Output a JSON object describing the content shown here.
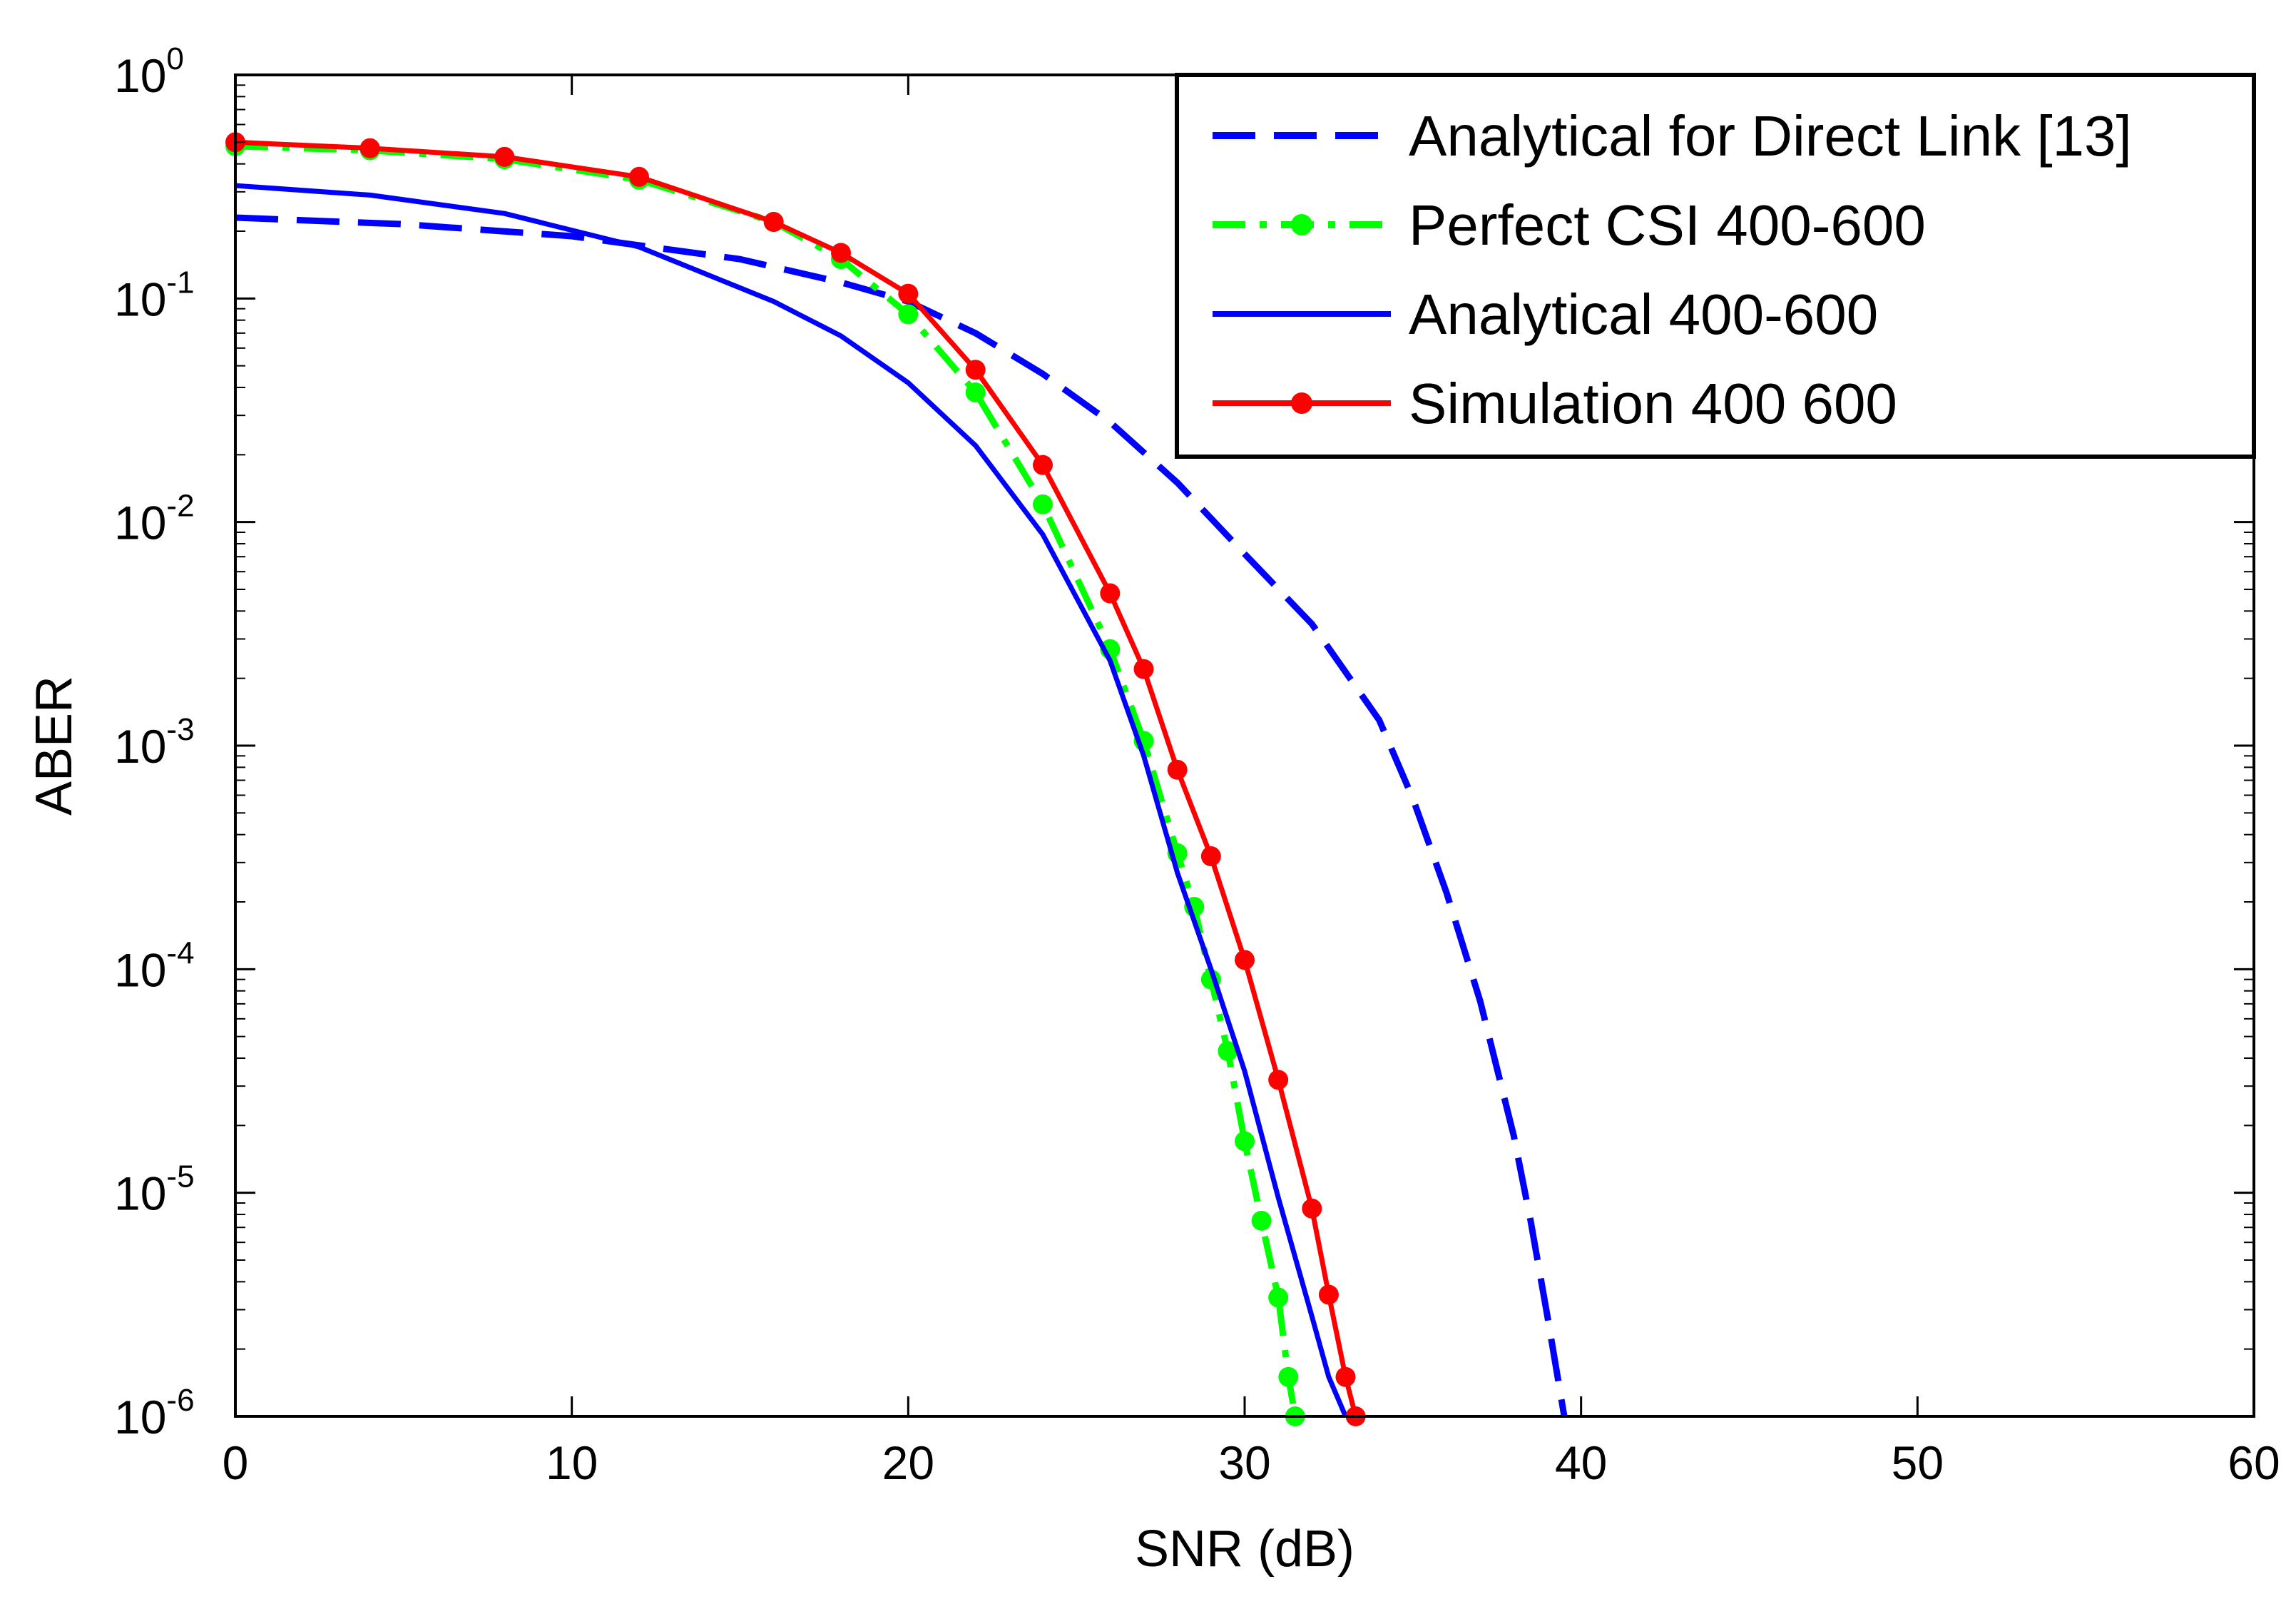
{
  "chart_data": {
    "type": "line",
    "title": "",
    "xlabel": "SNR (dB)",
    "ylabel": "ABER",
    "xlim": [
      0,
      60
    ],
    "ylim": [
      1e-06,
      1
    ],
    "yscale": "log",
    "grid": false,
    "legend_position": "top-right",
    "x_ticks": [
      0,
      10,
      20,
      30,
      40,
      50,
      60
    ],
    "y_ticks": [
      {
        "value": 1,
        "base": "10",
        "exponent": "0"
      },
      {
        "value": 0.1,
        "base": "10",
        "exponent": "-1"
      },
      {
        "value": 0.01,
        "base": "10",
        "exponent": "-2"
      },
      {
        "value": 0.001,
        "base": "10",
        "exponent": "-3"
      },
      {
        "value": 0.0001,
        "base": "10",
        "exponent": "-4"
      },
      {
        "value": 1e-05,
        "base": "10",
        "exponent": "-5"
      },
      {
        "value": 1e-06,
        "base": "10",
        "exponent": "-6"
      }
    ],
    "series": [
      {
        "name": "Analytical for Direct Link [13]",
        "color": "#0000ff",
        "style": "dashed",
        "marker": "none",
        "points": [
          [
            0,
            0.23
          ],
          [
            5,
            0.215
          ],
          [
            10,
            0.19
          ],
          [
            15,
            0.15
          ],
          [
            18,
            0.118
          ],
          [
            20,
            0.097
          ],
          [
            22,
            0.07
          ],
          [
            24,
            0.046
          ],
          [
            26,
            0.028
          ],
          [
            28,
            0.015
          ],
          [
            30,
            0.0072
          ],
          [
            32,
            0.0035
          ],
          [
            34,
            0.0013
          ],
          [
            35,
            0.00058
          ],
          [
            36,
            0.00022
          ],
          [
            37,
            7.2e-05
          ],
          [
            38,
            1.8e-05
          ],
          [
            38.5,
            7.5e-06
          ],
          [
            39,
            2.8e-06
          ],
          [
            39.5,
            1e-06
          ]
        ]
      },
      {
        "name": "Perfect CSI 400-600",
        "color": "#00ff00",
        "style": "dashdot",
        "marker": "dot",
        "points": [
          [
            0,
            0.48
          ],
          [
            4,
            0.46
          ],
          [
            8,
            0.42
          ],
          [
            12,
            0.34
          ],
          [
            16,
            0.22
          ],
          [
            18,
            0.15
          ],
          [
            20,
            0.085
          ],
          [
            22,
            0.038
          ],
          [
            24,
            0.012
          ],
          [
            26,
            0.0027
          ],
          [
            27,
            0.00105
          ],
          [
            28,
            0.00033
          ],
          [
            28.5,
            0.00019
          ],
          [
            29,
            9e-05
          ],
          [
            29.5,
            4.3e-05
          ],
          [
            30,
            1.7e-05
          ],
          [
            30.5,
            7.5e-06
          ],
          [
            31,
            3.4e-06
          ],
          [
            31.3,
            1.5e-06
          ],
          [
            31.5,
            1e-06
          ]
        ]
      },
      {
        "name": "Analytical 400-600",
        "color": "#0000ff",
        "style": "solid",
        "marker": "none",
        "points": [
          [
            0,
            0.32
          ],
          [
            4,
            0.29
          ],
          [
            8,
            0.24
          ],
          [
            12,
            0.17
          ],
          [
            16,
            0.097
          ],
          [
            18,
            0.068
          ],
          [
            20,
            0.042
          ],
          [
            22,
            0.022
          ],
          [
            24,
            0.0088
          ],
          [
            26,
            0.0024
          ],
          [
            27,
            0.0009
          ],
          [
            28,
            0.00027
          ],
          [
            29,
            0.0001
          ],
          [
            30,
            3.5e-05
          ],
          [
            31,
            9.5e-06
          ],
          [
            32,
            2.8e-06
          ],
          [
            32.5,
            1.5e-06
          ],
          [
            33,
            1e-06
          ]
        ]
      },
      {
        "name": "Simulation 400 600",
        "color": "#ff0000",
        "style": "solid",
        "marker": "dot",
        "points": [
          [
            0,
            0.5
          ],
          [
            4,
            0.47
          ],
          [
            8,
            0.43
          ],
          [
            12,
            0.35
          ],
          [
            16,
            0.22
          ],
          [
            18,
            0.16
          ],
          [
            20,
            0.105
          ],
          [
            22,
            0.048
          ],
          [
            24,
            0.018
          ],
          [
            26,
            0.0048
          ],
          [
            27,
            0.0022
          ],
          [
            28,
            0.00078
          ],
          [
            29,
            0.00032
          ],
          [
            30,
            0.00011
          ],
          [
            31,
            3.2e-05
          ],
          [
            32,
            8.5e-06
          ],
          [
            32.5,
            3.5e-06
          ],
          [
            33,
            1.5e-06
          ],
          [
            33.3,
            1e-06
          ]
        ]
      }
    ]
  }
}
